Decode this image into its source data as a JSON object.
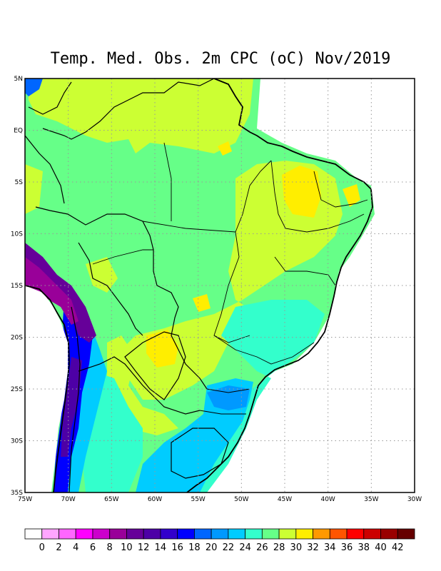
{
  "title": "Temp. Med. Obs. 2m CPC (oC) Nov/2019",
  "map": {
    "lon_labels": [
      "75W",
      "70W",
      "65W",
      "60W",
      "55W",
      "50W",
      "45W",
      "40W",
      "35W",
      "30W"
    ],
    "lat_labels": [
      "5N",
      "EQ",
      "5S",
      "10S",
      "15S",
      "20S",
      "25S",
      "30S",
      "35S"
    ],
    "colors": {
      "ocean": "#ffffff",
      "land_base": "#66ff88",
      "frame": "#000000",
      "grid": "#999999"
    }
  },
  "colorbar": {
    "labels": [
      "0",
      "2",
      "4",
      "6",
      "8",
      "10",
      "12",
      "14",
      "16",
      "18",
      "20",
      "22",
      "24",
      "26",
      "28",
      "30",
      "32",
      "34",
      "36",
      "38",
      "40",
      "42"
    ],
    "colors": [
      "#ffffff",
      "#ffa6ff",
      "#ff66ff",
      "#ff00ff",
      "#cc00cc",
      "#990099",
      "#660099",
      "#4d00a6",
      "#3300cc",
      "#0000ff",
      "#0066ff",
      "#0099ff",
      "#00ccff",
      "#33ffcc",
      "#66ff88",
      "#ccff33",
      "#ffee00",
      "#ff9900",
      "#ff5500",
      "#ff0000",
      "#cc0000",
      "#990000",
      "#660000"
    ]
  }
}
